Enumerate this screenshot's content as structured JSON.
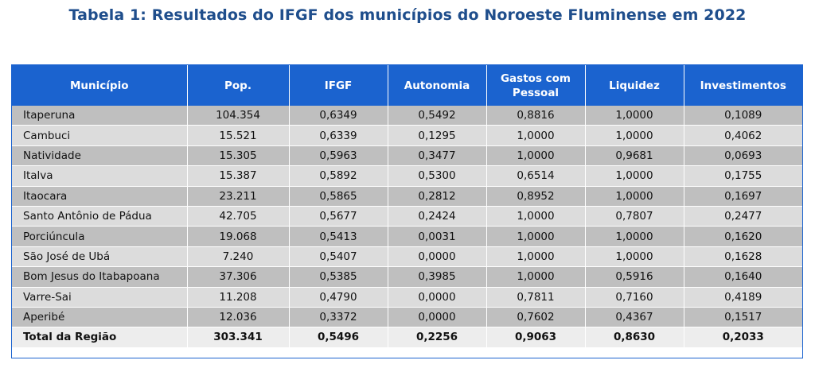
{
  "title": "Tabela 1: Resultados do IFGF dos municípios do Noroeste Fluminense em 2022",
  "headers": [
    "Município",
    "Pop.",
    "IFGF",
    "Autonomia",
    "Gastos com\nPessoal",
    "Liquidez",
    "Investimentos"
  ],
  "rows": [
    [
      "Itaperuna",
      "104.354",
      "0,6349",
      "0,5492",
      "0,8816",
      "1,0000",
      "0,1089"
    ],
    [
      "Cambuci",
      "15.521",
      "0,6339",
      "0,1295",
      "1,0000",
      "1,0000",
      "0,4062"
    ],
    [
      "Natividade",
      "15.305",
      "0,5963",
      "0,3477",
      "1,0000",
      "0,9681",
      "0,0693"
    ],
    [
      "Italva",
      "15.387",
      "0,5892",
      "0,5300",
      "0,6514",
      "1,0000",
      "0,1755"
    ],
    [
      "Itaocara",
      "23.211",
      "0,5865",
      "0,2812",
      "0,8952",
      "1,0000",
      "0,1697"
    ],
    [
      "Santo Antônio de Pádua",
      "42.705",
      "0,5677",
      "0,2424",
      "1,0000",
      "0,7807",
      "0,2477"
    ],
    [
      "Porciúncula",
      "19.068",
      "0,5413",
      "0,0031",
      "1,0000",
      "1,0000",
      "0,1620"
    ],
    [
      "São José de Ubá",
      "7.240",
      "0,5407",
      "0,0000",
      "1,0000",
      "1,0000",
      "0,1628"
    ],
    [
      "Bom Jesus do Itabapoana",
      "37.306",
      "0,5385",
      "0,3985",
      "1,0000",
      "0,5916",
      "0,1640"
    ],
    [
      "Varre-Sai",
      "11.208",
      "0,4790",
      "0,0000",
      "0,7811",
      "0,7160",
      "0,4189"
    ],
    [
      "Aperibé",
      "12.036",
      "0,3372",
      "0,0000",
      "0,7602",
      "0,4367",
      "0,1517"
    ]
  ],
  "total": [
    "Total da Região",
    "303.341",
    "0,5496",
    "0,2256",
    "0,9063",
    "0,8630",
    "0,2033"
  ],
  "colors": {
    "title": "#1f4e8c",
    "header_bg": "#1b63cf",
    "row_dark": "#bfbfbf",
    "row_light": "#dcdcdc"
  }
}
